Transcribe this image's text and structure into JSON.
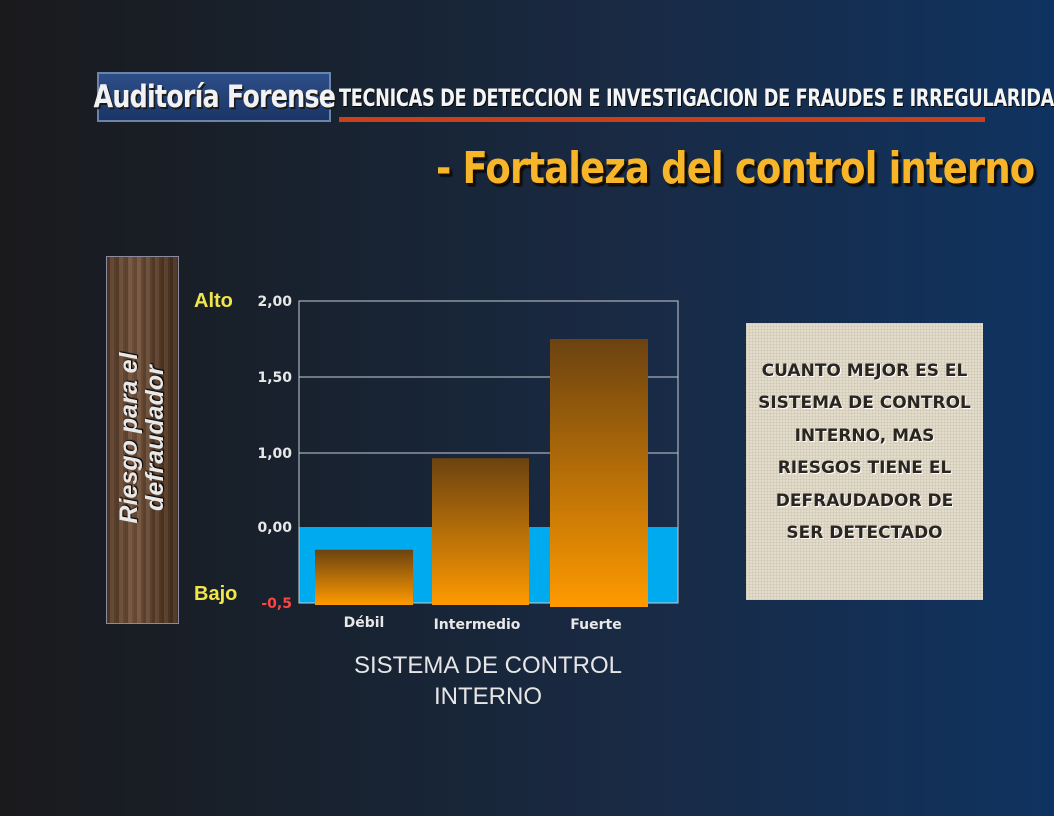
{
  "header": {
    "logo_text": "Auditoría Forense",
    "subtitle": "TECNICAS DE DETECCION E INVESTIGACION DE FRAUDES E IRREGULARIDADES",
    "title": "- Fortaleza del control interno"
  },
  "side": {
    "axis_text": "Riesgo para el defraudador",
    "high_label": "Alto",
    "low_label": "Bajo"
  },
  "note": {
    "text": "CUANTO MEJOR ES EL SISTEMA DE CONTROL INTERNO, MAS RIESGOS TIENE EL DEFRAUDADOR DE SER DETECTADO"
  },
  "colors": {
    "bar_top": "#6b4210",
    "bar_bottom": "#ff9a00",
    "floor": "#00aaee",
    "title": "#f7b52a",
    "accent_line": "#c9401a",
    "tick_label": "#e8e8e8",
    "negative_tick": "#ff4444"
  },
  "chart_data": {
    "type": "bar",
    "title": "SISTEMA DE CONTROL INTERNO",
    "categories": [
      "Débil",
      "Intermedio",
      "Fuerte"
    ],
    "values": [
      -0.15,
      0.93,
      1.75
    ],
    "ytick_labels": [
      "-0,5",
      "0,00",
      "1,00",
      "1,50",
      "2,00"
    ],
    "ylim": [
      -0.5,
      2.0
    ],
    "grid": true,
    "legend": "none"
  }
}
